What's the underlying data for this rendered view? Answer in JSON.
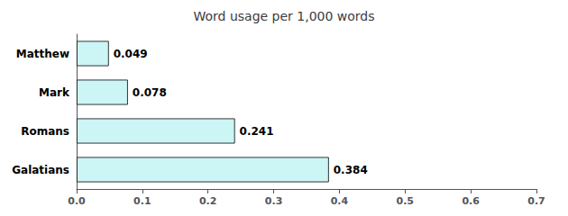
{
  "chart_data": {
    "type": "bar",
    "orientation": "horizontal",
    "title": "Word usage per 1,000 words",
    "categories": [
      "Matthew",
      "Mark",
      "Romans",
      "Galatians"
    ],
    "values": [
      0.049,
      0.078,
      0.241,
      0.384
    ],
    "color": "#ccf5f5",
    "xlim": [
      0.0,
      0.7
    ],
    "xticks": [
      {
        "value": 0,
        "label": "0.0"
      },
      0.1,
      0.2,
      0.3,
      0.4,
      0.5,
      0.6,
      0.7
    ],
    "data_labels": true,
    "grid": false
  }
}
